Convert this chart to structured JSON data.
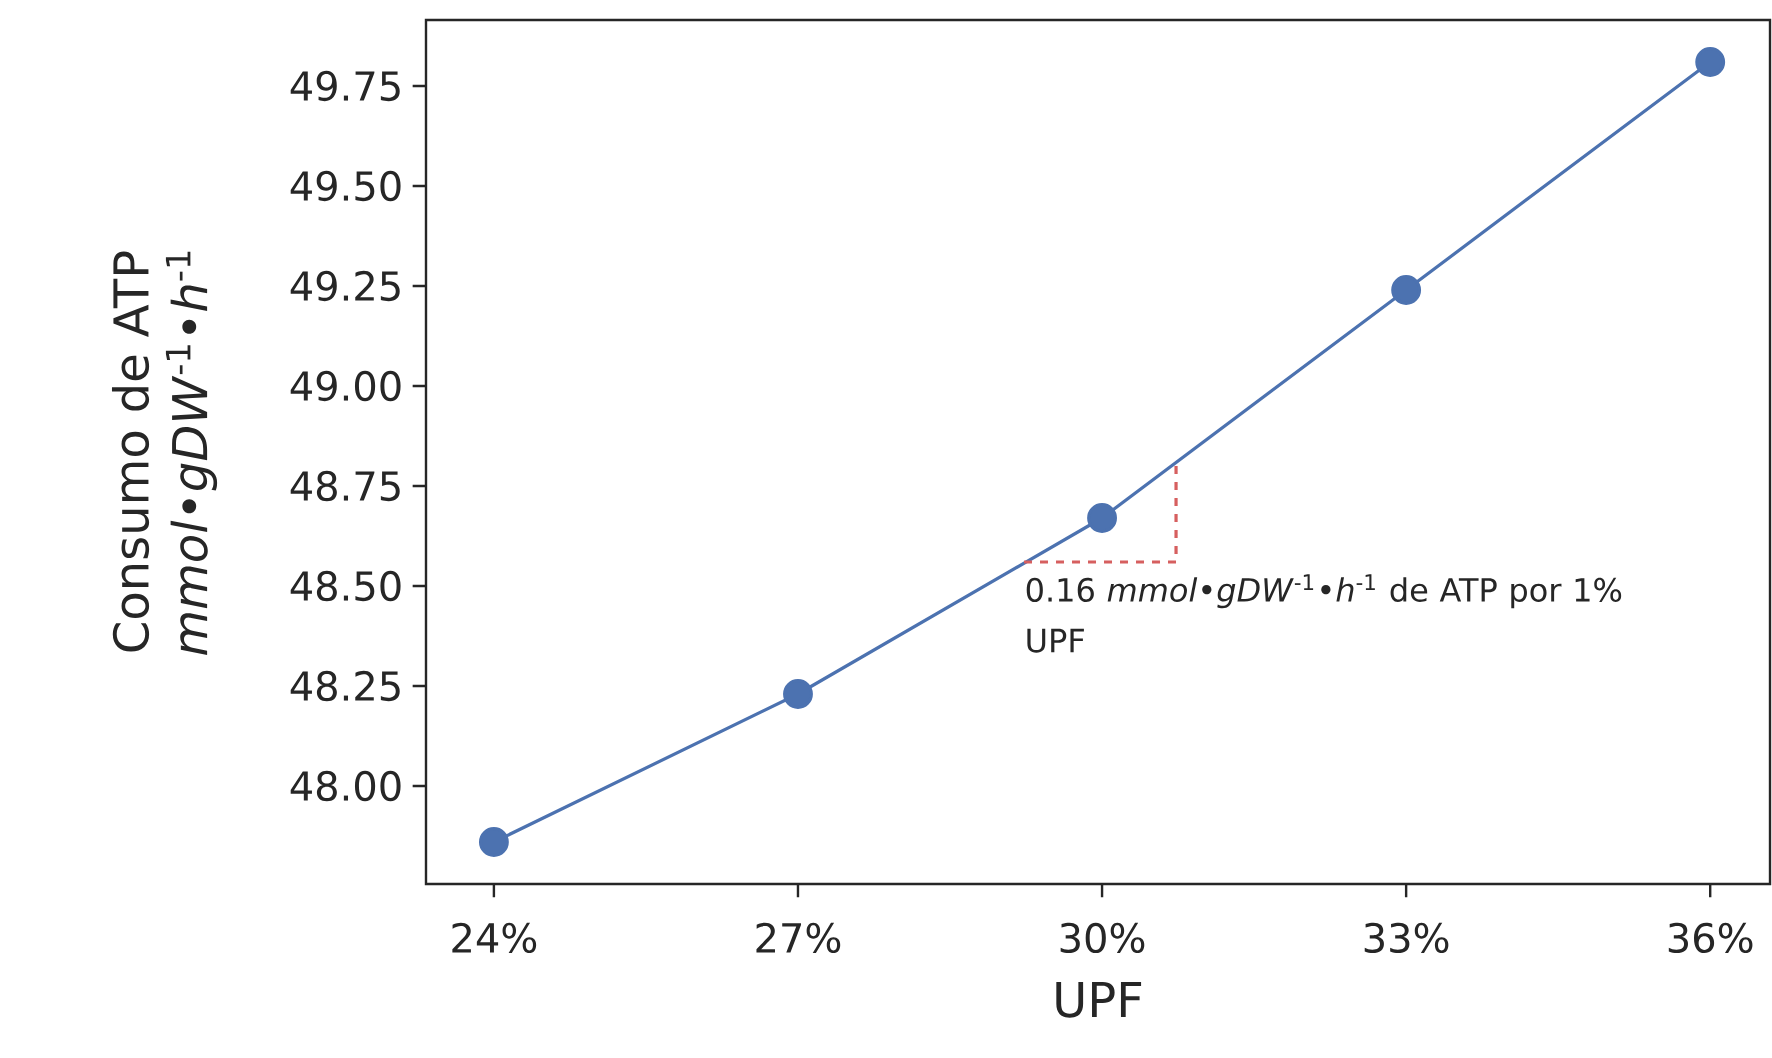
{
  "chart_data": {
    "type": "line",
    "xlabel": "UPF",
    "ylabel": "Consumo de ATP *mmol*•*gDW*$^{-1}$•*h*$^{-1}$",
    "xlim": [
      23.33,
      36.59
    ],
    "ylim": [
      47.755,
      49.915
    ],
    "xticks": [
      {
        "value": 24,
        "label": "24%"
      },
      {
        "value": 27,
        "label": "27%"
      },
      {
        "value": 30,
        "label": "30%"
      },
      {
        "value": 33,
        "label": "33%"
      },
      {
        "value": 36,
        "label": "36%"
      }
    ],
    "yticks": [
      {
        "value": 48,
        "label": "48.00"
      },
      {
        "value": 48.25,
        "label": "48.25"
      },
      {
        "value": 48.5,
        "label": "48.50"
      },
      {
        "value": 48.75,
        "label": "48.75"
      },
      {
        "value": 49,
        "label": "49.00"
      },
      {
        "value": 49.25,
        "label": "49.25"
      },
      {
        "value": 49.5,
        "label": "49.50"
      },
      {
        "value": 49.75,
        "label": "49.75"
      }
    ],
    "grid": false,
    "marker": "circle",
    "line_style": "solid",
    "series": [
      {
        "color": "#4c72b0",
        "x": [
          24,
          27,
          30,
          33,
          36
        ],
        "values": [
          47.86,
          48.23,
          48.67,
          49.24,
          49.81
        ]
      },
      {
        "color": "#d65f5f",
        "x": [
          29.23,
          30.73,
          30.73
        ],
        "values": [
          48.56,
          48.56,
          48.8
        ],
        "marker": "none",
        "line_style": "dashed"
      }
    ],
    "annotations": [
      "0.16 *mmol*•*gDW*$^{-1}$•*h*$^{-1}$ de ATP por 1% UPF"
    ]
  }
}
